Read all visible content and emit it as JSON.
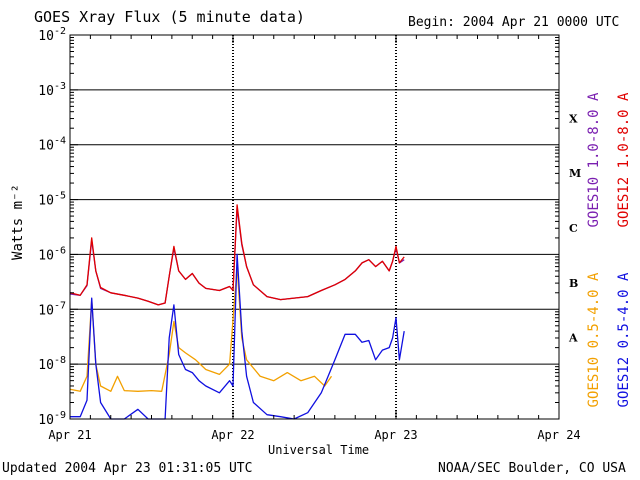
{
  "header": {
    "title": "GOES Xray Flux (5 minute data)",
    "begin": "Begin:  2004 Apr 21 0000 UTC"
  },
  "footer": {
    "updated": "Updated 2004 Apr 23 01:31:05 UTC",
    "credit": "NOAA/SEC Boulder, CO USA"
  },
  "chart_data": {
    "type": "line",
    "title": "GOES Xray Flux (5 minute data)",
    "xlabel": "Universal Time",
    "ylabel": "Watts m⁻²",
    "yscale": "log",
    "ylim": [
      1e-09,
      0.01
    ],
    "xlim": [
      0,
      72
    ],
    "x_units": "hours since 2004 Apr 21 0000 UTC",
    "xticks": [
      {
        "value": 0,
        "label": "Apr 21"
      },
      {
        "value": 24,
        "label": "Apr 22"
      },
      {
        "value": 48,
        "label": "Apr 23"
      },
      {
        "value": 72,
        "label": "Apr 24"
      }
    ],
    "yticks": [
      {
        "exp": -2,
        "label": "10",
        "sup": "-2"
      },
      {
        "exp": -3,
        "label": "10",
        "sup": "-3"
      },
      {
        "exp": -4,
        "label": "10",
        "sup": "-4"
      },
      {
        "exp": -5,
        "label": "10",
        "sup": "-5"
      },
      {
        "exp": -6,
        "label": "10",
        "sup": "-6"
      },
      {
        "exp": -7,
        "label": "10",
        "sup": "-7"
      },
      {
        "exp": -8,
        "label": "10",
        "sup": "-8"
      },
      {
        "exp": -9,
        "label": "10",
        "sup": "-9"
      }
    ],
    "flare_classes": [
      {
        "label": "X",
        "exp": -4
      },
      {
        "label": "M",
        "exp": -5
      },
      {
        "label": "C",
        "exp": -6
      },
      {
        "label": "B",
        "exp": -7
      },
      {
        "label": "A",
        "exp": -8
      }
    ],
    "grid": true,
    "legend_position": "right, vertical",
    "colors": {
      "goes10_long": "#7a1fb0",
      "goes12_long": "#e00000",
      "goes10_short": "#f2a000",
      "goes12_short": "#1010e0"
    },
    "series": [
      {
        "name": "GOES10 1.0-8.0 A",
        "color_key": "goes10_long",
        "x": [
          0,
          1.5,
          2.5,
          3.2,
          3.8,
          4.5,
          6,
          8,
          10,
          11.5,
          13,
          14,
          14.6,
          15.3,
          16,
          17,
          18,
          19,
          20,
          22,
          23.5,
          24,
          24.6,
          25.3,
          26,
          27,
          29,
          31,
          33,
          35,
          37,
          39,
          40.5,
          42,
          43,
          44,
          45,
          46,
          47,
          47.5,
          48,
          48.5,
          49.2
        ],
        "y": [
          1.9e-07,
          1.8e-07,
          2.7e-07,
          1.8e-06,
          5e-07,
          2.4e-07,
          2e-07,
          1.8e-07,
          1.6e-07,
          1.4e-07,
          1.2e-07,
          1.3e-07,
          4e-07,
          1.3e-06,
          5e-07,
          3.5e-07,
          4.5e-07,
          3e-07,
          2.4e-07,
          2.2e-07,
          2.6e-07,
          2.2e-07,
          7e-06,
          1.5e-06,
          6e-07,
          2.8e-07,
          1.7e-07,
          1.5e-07,
          1.6e-07,
          1.7e-07,
          2.2e-07,
          2.8e-07,
          3.5e-07,
          5e-07,
          7e-07,
          8e-07,
          6e-07,
          7.5e-07,
          5e-07,
          7.5e-07,
          1.3e-06,
          7e-07,
          8e-07
        ]
      },
      {
        "name": "GOES12 1.0-8.0 A",
        "color_key": "goes12_long",
        "x": [
          0,
          1.5,
          2.5,
          3.2,
          3.8,
          4.5,
          6,
          8,
          10,
          11.5,
          13,
          14,
          14.6,
          15.3,
          16,
          17,
          18,
          19,
          20,
          22,
          23.5,
          24,
          24.6,
          25.3,
          26,
          27,
          29,
          31,
          33,
          35,
          37,
          39,
          40.5,
          42,
          43,
          44,
          45,
          46,
          47,
          47.5,
          48,
          48.5,
          49.2
        ],
        "y": [
          2e-07,
          1.8e-07,
          2.8e-07,
          2e-06,
          5e-07,
          2.5e-07,
          2e-07,
          1.8e-07,
          1.6e-07,
          1.4e-07,
          1.2e-07,
          1.3e-07,
          4e-07,
          1.4e-06,
          5e-07,
          3.5e-07,
          4.5e-07,
          3e-07,
          2.4e-07,
          2.2e-07,
          2.6e-07,
          2.2e-07,
          8e-06,
          1.6e-06,
          6e-07,
          2.8e-07,
          1.7e-07,
          1.5e-07,
          1.6e-07,
          1.7e-07,
          2.2e-07,
          2.8e-07,
          3.5e-07,
          5e-07,
          7e-07,
          8e-07,
          6e-07,
          7.5e-07,
          5e-07,
          7.5e-07,
          1.4e-06,
          7e-07,
          9e-07
        ]
      },
      {
        "name": "GOES10 0.5-4.0 A",
        "color_key": "goes10_short",
        "x": [
          0,
          1.5,
          2.5,
          3.2,
          3.8,
          4.5,
          6,
          7,
          8,
          10,
          12,
          13.5,
          14.6,
          15.3,
          16,
          17,
          18.5,
          20,
          22,
          23.5,
          24.6,
          25.3,
          26,
          28,
          30,
          32,
          34,
          36,
          37.5,
          38.5
        ],
        "y": [
          3.5e-09,
          3.2e-09,
          6e-09,
          1.5e-07,
          1e-08,
          4e-09,
          3.2e-09,
          6e-09,
          3.3e-09,
          3.2e-09,
          3.3e-09,
          3.2e-09,
          1.5e-08,
          6e-08,
          2e-08,
          1.6e-08,
          1.2e-08,
          8e-09,
          6.5e-09,
          1e-08,
          6e-07,
          3e-08,
          1.2e-08,
          6e-09,
          5e-09,
          7e-09,
          5e-09,
          6e-09,
          4e-09,
          6e-09
        ]
      },
      {
        "name": "GOES12 0.5-4.0 A",
        "color_key": "goes12_short",
        "x": [
          0,
          1.5,
          2.5,
          3.2,
          3.8,
          4.5,
          6,
          8,
          10,
          11.5,
          13,
          14,
          14.6,
          15.3,
          16,
          17,
          18,
          19,
          20,
          22,
          23.5,
          24,
          24.6,
          25.3,
          26,
          27,
          29,
          31,
          33,
          35,
          37,
          39,
          40.5,
          42,
          43,
          44,
          45,
          46,
          47,
          47.5,
          48,
          48.5,
          49.2
        ],
        "y": [
          1.1e-09,
          1.1e-09,
          2.2e-09,
          1.6e-07,
          1e-08,
          2e-09,
          1e-09,
          1e-09,
          1.5e-09,
          1e-09,
          1e-09,
          1e-09,
          3e-08,
          1.2e-07,
          1.5e-08,
          8e-09,
          7e-09,
          5e-09,
          4e-09,
          3e-09,
          5e-09,
          4e-09,
          1e-06,
          4e-08,
          6e-09,
          2e-09,
          1.2e-09,
          1.1e-09,
          1e-09,
          1.3e-09,
          3e-09,
          1.2e-08,
          3.5e-08,
          3.5e-08,
          2.5e-08,
          2.7e-08,
          1.2e-08,
          1.8e-08,
          2e-08,
          3e-08,
          7e-08,
          1.2e-08,
          4e-08
        ]
      }
    ]
  }
}
